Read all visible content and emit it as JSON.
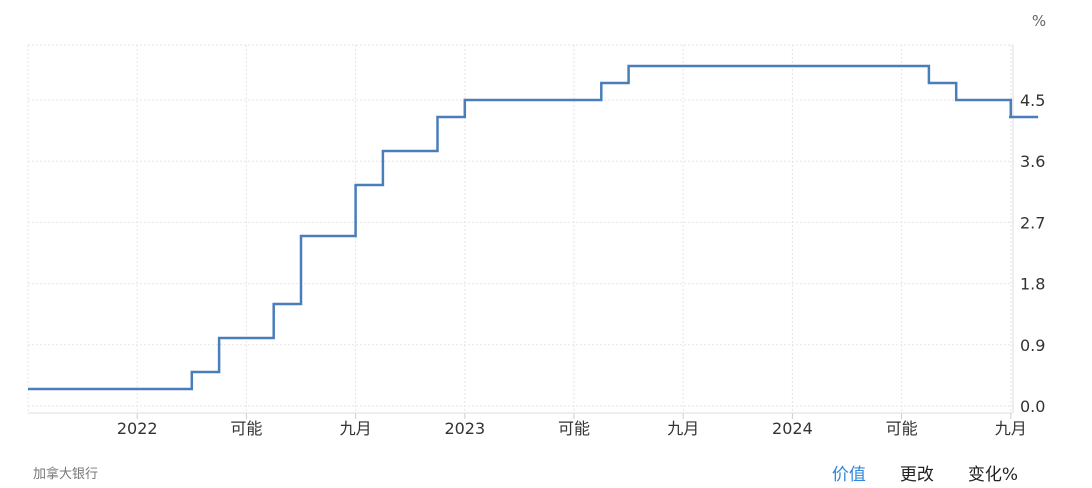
{
  "chart_data": {
    "type": "line",
    "step": true,
    "unit": "%",
    "x_ticks": [
      "2022",
      "可能",
      "九月",
      "2023",
      "可能",
      "九月",
      "2024",
      "可能",
      "九月"
    ],
    "y_ticks": [
      "0.0",
      "0.9",
      "1.8",
      "2.7",
      "3.6",
      "4.5"
    ],
    "ylim": [
      0.0,
      5.0
    ],
    "grid": true,
    "series": [
      {
        "color": "#4a7ebb",
        "x": [
          "2021-09",
          "2022-03",
          "2022-04",
          "2022-06",
          "2022-07",
          "2022-09",
          "2022-10",
          "2022-12",
          "2023-01",
          "2023-06",
          "2023-07",
          "2024-06",
          "2024-07",
          "2024-09",
          "2024-10"
        ],
        "y": [
          0.25,
          0.5,
          1.0,
          1.5,
          2.5,
          3.25,
          3.75,
          4.25,
          4.5,
          4.75,
          5.0,
          4.75,
          4.5,
          4.25,
          4.25
        ]
      }
    ]
  },
  "footer": {
    "source": "加拿大银行",
    "tabs": [
      "价值",
      "更改",
      "变化%"
    ],
    "active_tab": "价值"
  }
}
